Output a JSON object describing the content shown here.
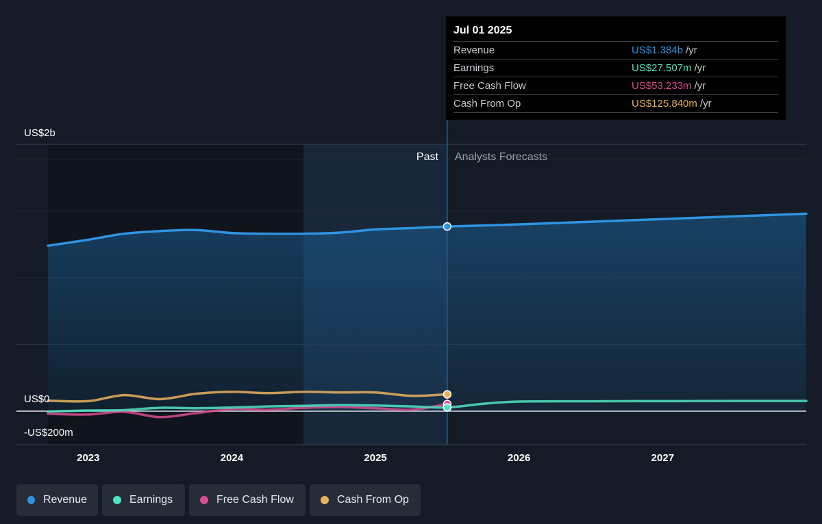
{
  "tooltip": {
    "date": "Jul 01 2025",
    "rows": [
      {
        "label": "Revenue",
        "value": "US$1.384b",
        "unit": "/yr",
        "color": "#2f93e0"
      },
      {
        "label": "Earnings",
        "value": "US$27.507m",
        "unit": "/yr",
        "color": "#52e3c2"
      },
      {
        "label": "Free Cash Flow",
        "value": "US$53.233m",
        "unit": "/yr",
        "color": "#d64e8f"
      },
      {
        "label": "Cash From Op",
        "value": "US$125.840m",
        "unit": "/yr",
        "color": "#e9b25e"
      }
    ]
  },
  "legend": [
    {
      "label": "Revenue",
      "color": "#2f93e0"
    },
    {
      "label": "Earnings",
      "color": "#52e3c2"
    },
    {
      "label": "Free Cash Flow",
      "color": "#d64e8f"
    },
    {
      "label": "Cash From Op",
      "color": "#e9b25e"
    }
  ],
  "chart_data": {
    "type": "line",
    "y_tick_labels": [
      "US$2b",
      "US$0",
      "-US$200m"
    ],
    "ylim": [
      -200,
      2000
    ],
    "y_unit": "US$m",
    "x_tick_labels": [
      "2023",
      "2024",
      "2025",
      "2026",
      "2027"
    ],
    "x_ticks": [
      2023.0,
      2024.0,
      2025.0,
      2026.0,
      2027.0
    ],
    "xlim": [
      2022.5,
      2028.0
    ],
    "divider_x": 2025.5,
    "past_label": "Past",
    "forecast_label": "Analysts Forecasts",
    "series": [
      {
        "name": "Revenue",
        "color": "#2f93e0",
        "x": [
          2022.72,
          2023.0,
          2023.25,
          2023.5,
          2023.75,
          2024.0,
          2024.25,
          2024.5,
          2024.75,
          2025.0,
          2025.25,
          2025.5,
          2026.0,
          2026.5,
          2027.0,
          2027.5,
          2028.0
        ],
        "y": [
          1240,
          1285,
          1330,
          1350,
          1358,
          1335,
          1330,
          1330,
          1338,
          1362,
          1372,
          1384,
          1400,
          1420,
          1440,
          1460,
          1480
        ]
      },
      {
        "name": "Earnings",
        "color": "#52e3c2",
        "x": [
          2022.72,
          2023.0,
          2023.25,
          2023.5,
          2023.75,
          2024.0,
          2024.25,
          2024.5,
          2024.75,
          2025.0,
          2025.25,
          2025.5,
          2025.75,
          2026.0,
          2026.5,
          2027.0,
          2027.5,
          2028.0
        ],
        "y": [
          -4,
          5,
          8,
          25,
          22,
          27,
          35,
          40,
          45,
          42,
          35,
          27.5,
          55,
          72,
          74,
          75,
          76,
          76
        ]
      },
      {
        "name": "Free Cash Flow",
        "color": "#d64e8f",
        "x": [
          2022.72,
          2023.0,
          2023.25,
          2023.5,
          2023.75,
          2024.0,
          2024.25,
          2024.5,
          2024.75,
          2025.0,
          2025.25,
          2025.5
        ],
        "y": [
          -20,
          -25,
          -5,
          -45,
          -15,
          15,
          10,
          25,
          30,
          22,
          10,
          53.2
        ]
      },
      {
        "name": "Cash From Op",
        "color": "#e9b25e",
        "x": [
          2022.72,
          2023.0,
          2023.25,
          2023.5,
          2023.75,
          2024.0,
          2024.25,
          2024.5,
          2024.75,
          2025.0,
          2025.25,
          2025.5
        ],
        "y": [
          78,
          75,
          120,
          90,
          130,
          145,
          135,
          145,
          140,
          140,
          115,
          125.8
        ]
      }
    ]
  }
}
